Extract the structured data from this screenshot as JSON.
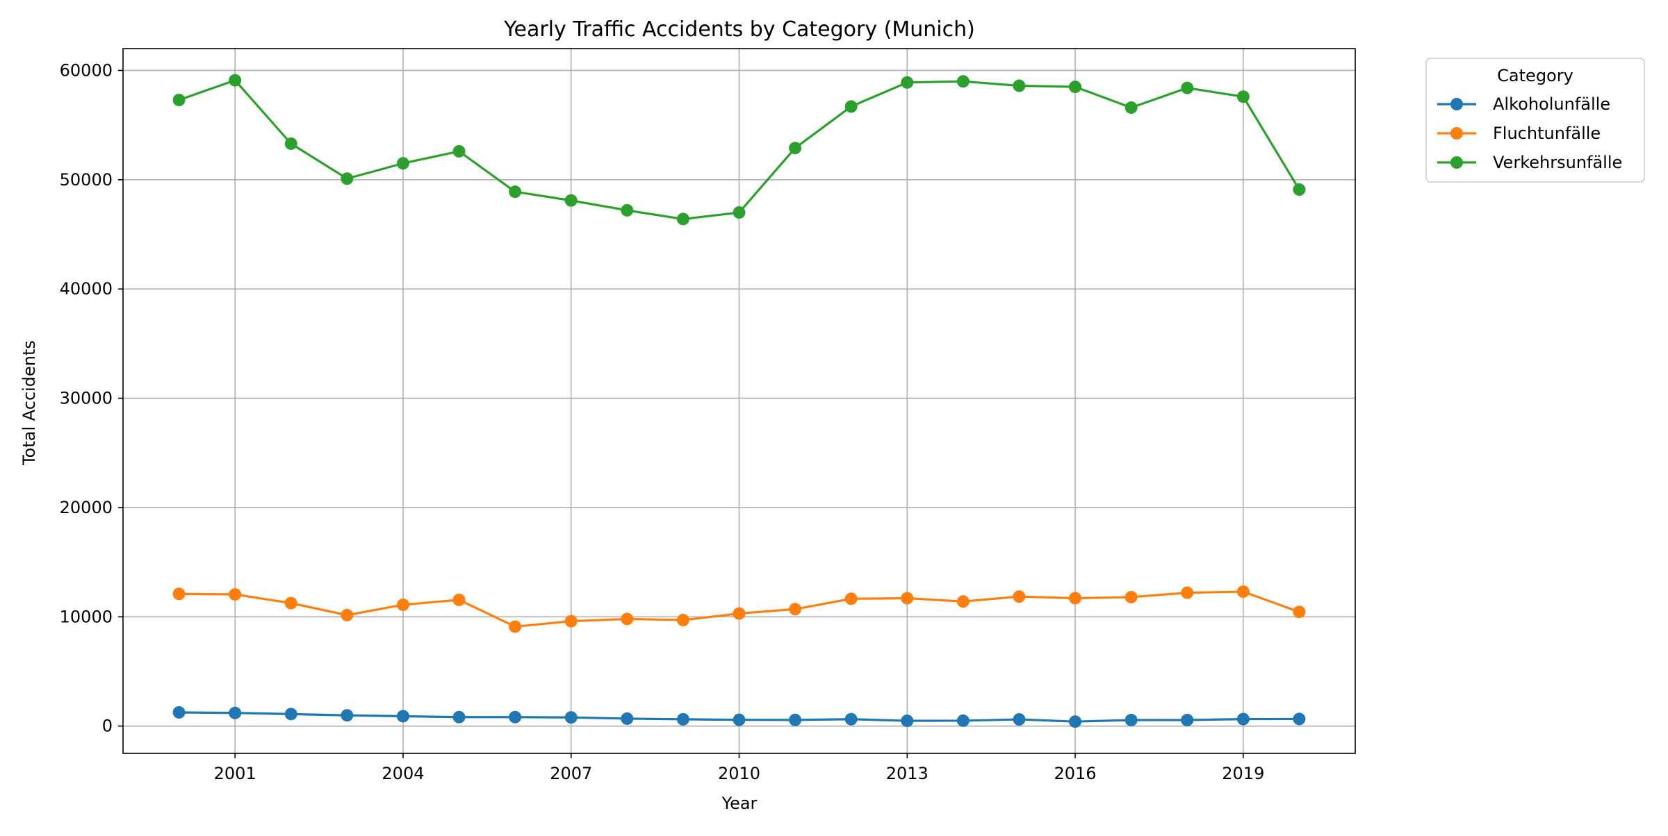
{
  "chart_data": {
    "type": "line",
    "title": "Yearly Traffic Accidents by Category (Munich)",
    "xlabel": "Year",
    "ylabel": "Total Accidents",
    "x": [
      2000,
      2001,
      2002,
      2003,
      2004,
      2005,
      2006,
      2007,
      2008,
      2009,
      2010,
      2011,
      2012,
      2013,
      2014,
      2015,
      2016,
      2017,
      2018,
      2019,
      2020
    ],
    "xlim": [
      1999,
      2021
    ],
    "ylim": [
      -2500,
      62000
    ],
    "xticks": [
      2001,
      2004,
      2007,
      2010,
      2013,
      2016,
      2019
    ],
    "yticks": [
      0,
      10000,
      20000,
      30000,
      40000,
      50000,
      60000
    ],
    "grid": true,
    "legend": {
      "title": "Category",
      "placement": "outside-top-right"
    },
    "series": [
      {
        "name": "Alkoholunfälle",
        "color": "#1f77b4",
        "values": [
          1250,
          1200,
          1100,
          980,
          900,
          820,
          820,
          790,
          680,
          620,
          570,
          560,
          630,
          480,
          490,
          610,
          410,
          550,
          550,
          640,
          650
        ]
      },
      {
        "name": "Fluchtunfälle",
        "color": "#ff7f0e",
        "values": [
          12100,
          12050,
          11250,
          10150,
          11100,
          11550,
          9100,
          9600,
          9800,
          9700,
          10300,
          10700,
          11650,
          11700,
          11400,
          11850,
          11700,
          11800,
          12200,
          12300,
          10450
        ]
      },
      {
        "name": "Verkehrsunfälle",
        "color": "#2ca02c",
        "values": [
          57300,
          59100,
          53300,
          50100,
          51500,
          52600,
          48900,
          48100,
          47200,
          46400,
          47000,
          52900,
          56700,
          58900,
          59000,
          58600,
          58500,
          56600,
          58400,
          57600,
          49100
        ]
      }
    ]
  }
}
